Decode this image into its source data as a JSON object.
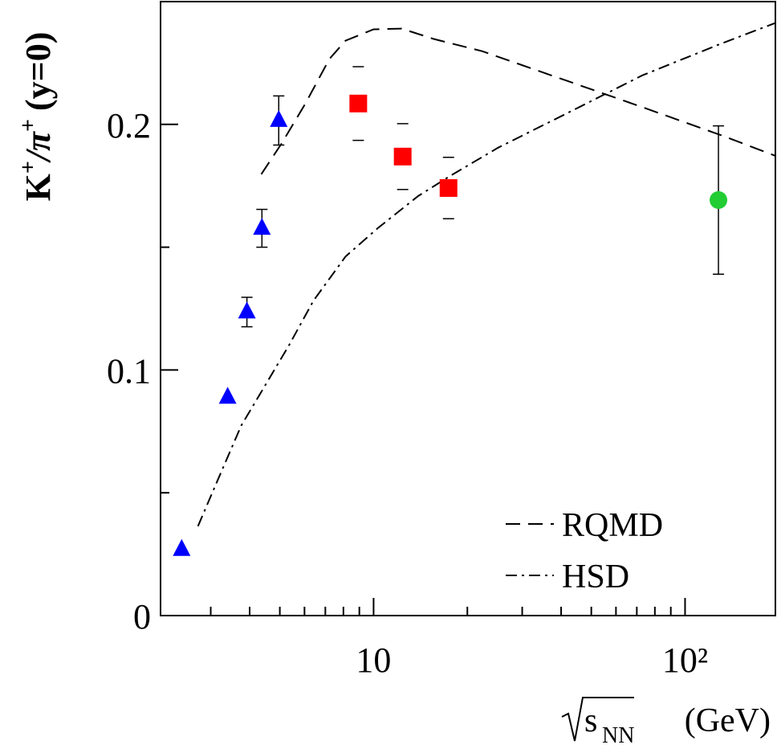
{
  "chart_data": {
    "type": "scatter",
    "x_label": [
      "s",
      "NN",
      "(GeV)"
    ],
    "y_label": [
      "K",
      "+",
      "/π",
      "+",
      "(y=0)"
    ],
    "log_x": true,
    "xlim": [
      2.07,
      195
    ],
    "ylim": [
      0,
      0.25
    ],
    "xticks": [
      10,
      {
        "value": 100,
        "label": "10²"
      }
    ],
    "xminor": [
      3,
      4,
      5,
      6,
      7,
      8,
      9,
      20,
      30,
      40,
      50,
      60,
      70,
      80,
      90
    ],
    "yticks": [
      0,
      0.1,
      0.2
    ],
    "yminor": [
      0.05,
      0.15
    ],
    "legend": "bottom-right",
    "points": [
      {
        "marker": "triangle",
        "color": "#0000ff",
        "error_line": true,
        "x": [
          2.42,
          3.4,
          3.92,
          4.38,
          4.96
        ],
        "y": [
          0.0269,
          0.0889,
          0.1236,
          0.1577,
          0.2016
        ],
        "yerr": [
          null,
          null,
          0.006,
          0.0077,
          0.01
        ]
      },
      {
        "marker": "square",
        "color": "#ff0000",
        "error_line": false,
        "x": [
          8.93,
          12.4,
          17.4
        ],
        "y": [
          0.2085,
          0.1869,
          0.1741
        ],
        "yerr": [
          0.015,
          0.0134,
          0.0125
        ]
      },
      {
        "marker": "circle",
        "color": "#22cc33",
        "error_line": true,
        "x": [
          128
        ],
        "y": [
          0.1692
        ],
        "yerr": [
          0.0302
        ]
      }
    ],
    "lines": [
      {
        "name": "RQMD",
        "dash": "18 10",
        "x": [
          4.36,
          5.06,
          6.04,
          7.21,
          8.13,
          10,
          12.3,
          15.6,
          22.3,
          40.4,
          73,
          132,
          195
        ],
        "y": [
          0.1797,
          0.1921,
          0.2085,
          0.2266,
          0.2341,
          0.2387,
          0.239,
          0.2348,
          0.2298,
          0.2184,
          0.207,
          0.1954,
          0.1872
        ]
      },
      {
        "name": "HSD",
        "dash": "14 6 3 6",
        "x": [
          2.73,
          3.14,
          3.76,
          4.49,
          5.36,
          6.41,
          8.13,
          10.3,
          13.9,
          17.6,
          25.1,
          40.4,
          73,
          132,
          195
        ],
        "y": [
          0.0364,
          0.0544,
          0.0774,
          0.0938,
          0.1102,
          0.1282,
          0.1462,
          0.1577,
          0.1708,
          0.179,
          0.1905,
          0.2036,
          0.22,
          0.2331,
          0.2413
        ]
      }
    ]
  }
}
